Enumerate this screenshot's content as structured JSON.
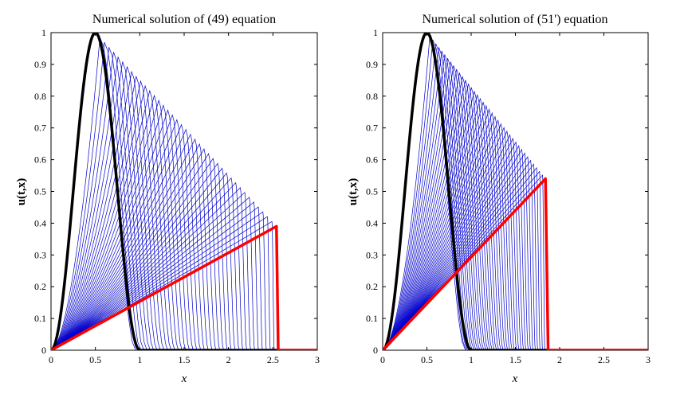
{
  "chart_data": [
    {
      "type": "line",
      "title": "Numerical solution of (49) equation",
      "xlabel": "x",
      "ylabel": "u(t,x)",
      "xlim": [
        0,
        3
      ],
      "ylim": [
        0,
        1
      ],
      "xticks": [
        "0",
        "0.5",
        "1",
        "1.5",
        "2",
        "2.5",
        "3"
      ],
      "yticks": [
        "0",
        "0.1",
        "0.2",
        "0.3",
        "0.4",
        "0.5",
        "0.6",
        "0.7",
        "0.8",
        "0.9",
        "1"
      ],
      "grid": false,
      "initial_profile": {
        "color": "#000000",
        "x": [
          0,
          0.1,
          0.2,
          0.3,
          0.4,
          0.5,
          0.6,
          0.7,
          0.8,
          0.9,
          1.0
        ],
        "y": [
          0,
          0.1,
          0.34,
          0.65,
          0.9,
          1.0,
          0.9,
          0.65,
          0.34,
          0.1,
          0
        ]
      },
      "family": {
        "color": "#0000cc",
        "count": 40,
        "peak_x": [
          0.5,
          2.54
        ],
        "peak_y": [
          1.0,
          0.39
        ]
      },
      "final_profile": {
        "color": "#ff0000",
        "x": [
          0,
          2.54,
          2.56,
          3.0
        ],
        "y": [
          0,
          0.39,
          0,
          0
        ]
      }
    },
    {
      "type": "line",
      "title": "Numerical solution of (51') equation",
      "xlabel": "x",
      "ylabel": "u(t,x)",
      "xlim": [
        0,
        3
      ],
      "ylim": [
        0,
        1
      ],
      "xticks": [
        "0",
        "0.5",
        "1",
        "1.5",
        "2",
        "2.5",
        "3"
      ],
      "yticks": [
        "0",
        "0.1",
        "0.2",
        "0.3",
        "0.4",
        "0.5",
        "0.6",
        "0.7",
        "0.8",
        "0.9",
        "1"
      ],
      "grid": false,
      "initial_profile": {
        "color": "#000000",
        "x": [
          0,
          0.1,
          0.2,
          0.3,
          0.4,
          0.5,
          0.6,
          0.7,
          0.8,
          0.9,
          1.0
        ],
        "y": [
          0,
          0.1,
          0.34,
          0.65,
          0.9,
          1.0,
          0.9,
          0.65,
          0.34,
          0.1,
          0
        ]
      },
      "family": {
        "color": "#0000cc",
        "count": 40,
        "peak_x": [
          0.5,
          1.84
        ],
        "peak_y": [
          1.0,
          0.54
        ]
      },
      "final_profile": {
        "color": "#ff0000",
        "x": [
          0,
          1.84,
          1.87,
          3.0
        ],
        "y": [
          0,
          0.54,
          0,
          0
        ]
      }
    }
  ]
}
